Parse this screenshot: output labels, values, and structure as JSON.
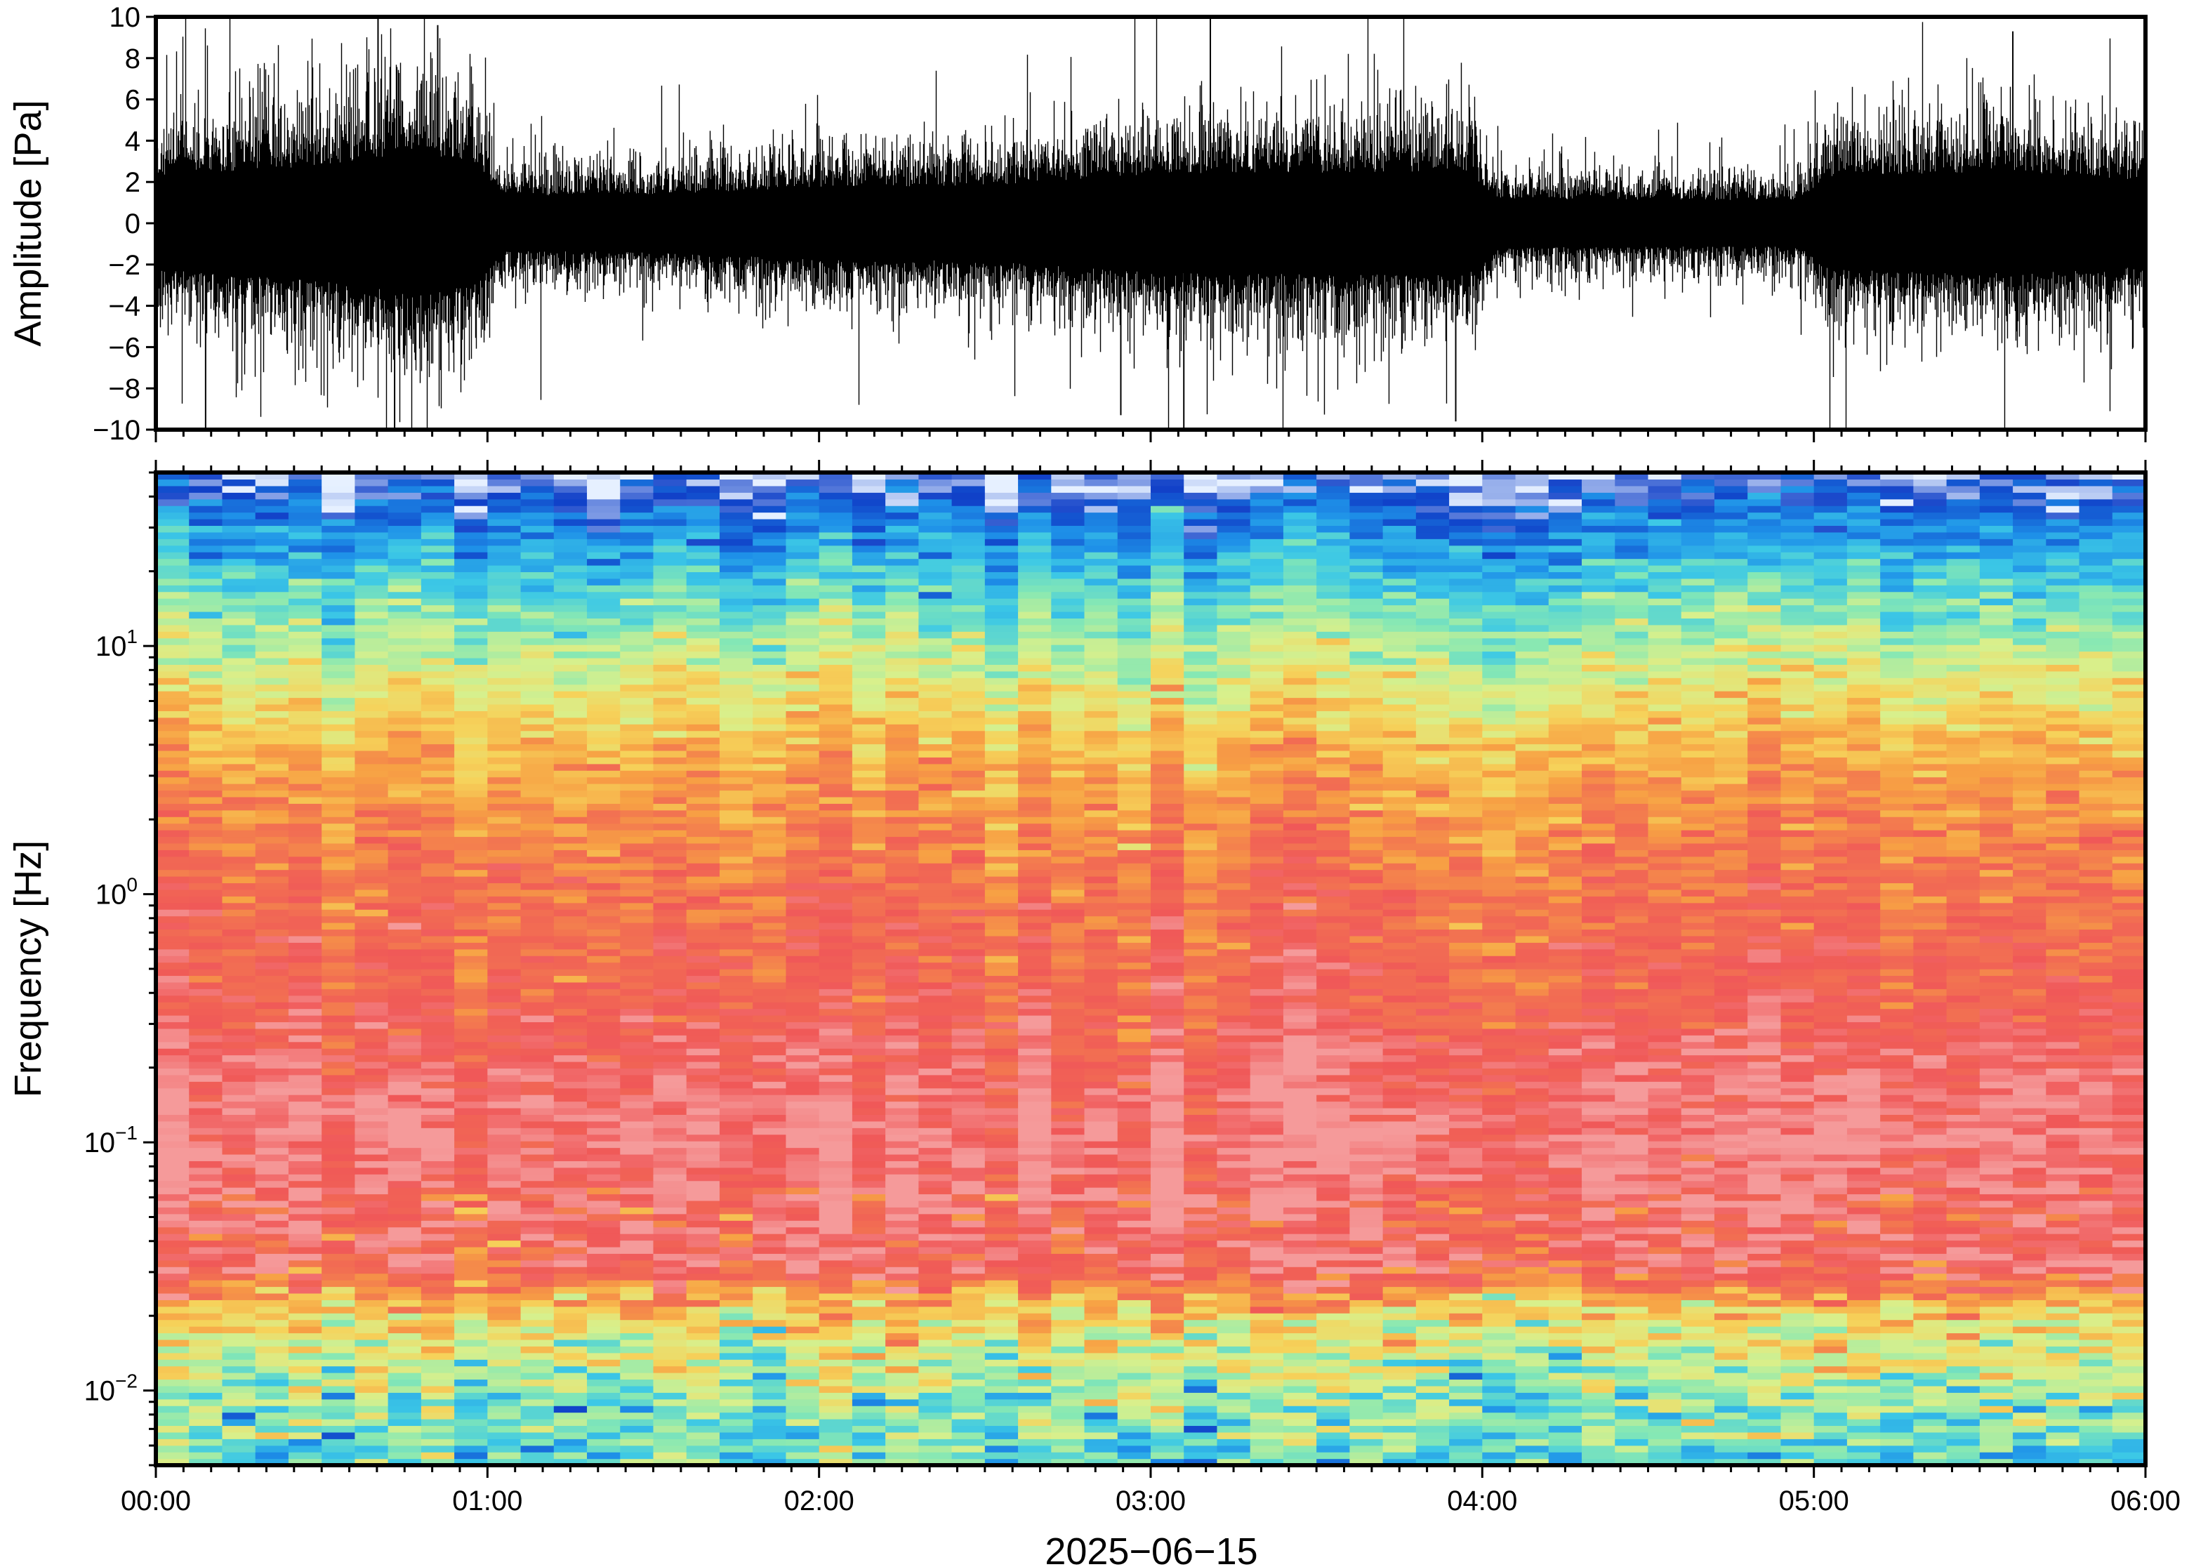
{
  "chart_data": [
    {
      "type": "line",
      "panel": "waveform",
      "ylabel": "Amplitude [Pa]",
      "ylim": [
        -10,
        10
      ],
      "yticks": [
        -10,
        -8,
        -6,
        -4,
        -2,
        0,
        2,
        4,
        6,
        8,
        10
      ],
      "ytick_labels": [
        "−10",
        "−8",
        "−6",
        "−4",
        "−2",
        "0",
        "2",
        "4",
        "6",
        "8",
        "10"
      ],
      "xlim_hours": [
        0,
        6
      ],
      "line_color": "#000000",
      "envelope": {
        "x_hours": [
          0.0,
          0.25,
          0.5,
          0.75,
          0.95,
          1.05,
          1.5,
          2.0,
          2.5,
          3.0,
          3.5,
          3.95,
          4.05,
          4.5,
          4.95,
          5.05,
          5.5,
          6.0
        ],
        "half_range_pa": [
          3.2,
          3.6,
          4.0,
          4.8,
          4.4,
          1.9,
          2.0,
          2.5,
          2.6,
          3.4,
          3.5,
          3.6,
          1.7,
          1.6,
          1.6,
          3.2,
          3.5,
          3.0
        ]
      },
      "peak_spikes": [
        {
          "x_hours": 0.67,
          "value": 10
        },
        {
          "x_hours": 0.72,
          "value": -10
        },
        {
          "x_hours": 0.85,
          "value": 9.6
        },
        {
          "x_hours": 0.15,
          "value": -10
        },
        {
          "x_hours": 3.18,
          "value": 9.9
        },
        {
          "x_hours": 3.1,
          "value": -10
        },
        {
          "x_hours": 2.91,
          "value": -9.3
        },
        {
          "x_hours": 3.92,
          "value": -9.6
        },
        {
          "x_hours": 5.6,
          "value": 9.3
        }
      ]
    },
    {
      "type": "heatmap",
      "panel": "spectrogram",
      "ylabel": "Frequency [Hz]",
      "yscale": "log",
      "ylim": [
        0.005,
        50
      ],
      "ytick_labels": [
        {
          "value": 0.01,
          "base": "10",
          "exponent": "−2"
        },
        {
          "value": 0.1,
          "base": "10",
          "exponent": "−1"
        },
        {
          "value": 1,
          "base": "10",
          "exponent": "0"
        },
        {
          "value": 10,
          "base": "10",
          "exponent": "1"
        }
      ],
      "xlim_hours": [
        0,
        6
      ],
      "xtick_labels": [
        "00:00",
        "01:00",
        "02:00",
        "03:00",
        "04:00",
        "05:00",
        "06:00"
      ],
      "xlabel": "2025−06−15",
      "colormap": [
        "#e6f0ff",
        "#1040c8",
        "#1e90e8",
        "#3cc8e6",
        "#86e8b4",
        "#d8f08c",
        "#f6d25a",
        "#f7a044",
        "#f27052",
        "#f05858",
        "#f59a9a"
      ],
      "time_columns": 60,
      "freq_rows": 150,
      "relative_power_by_log10_freq": {
        "log10_freq": [
          -2.3,
          -2.0,
          -1.7,
          -1.5,
          -1.3,
          -1.0,
          -0.7,
          -0.4,
          0.0,
          0.3,
          0.6,
          0.9,
          1.2,
          1.5,
          1.7
        ],
        "level": [
          0.34,
          0.42,
          0.58,
          0.9,
          0.9,
          0.96,
          0.92,
          0.84,
          0.8,
          0.73,
          0.65,
          0.5,
          0.35,
          0.18,
          0.02
        ]
      }
    }
  ]
}
